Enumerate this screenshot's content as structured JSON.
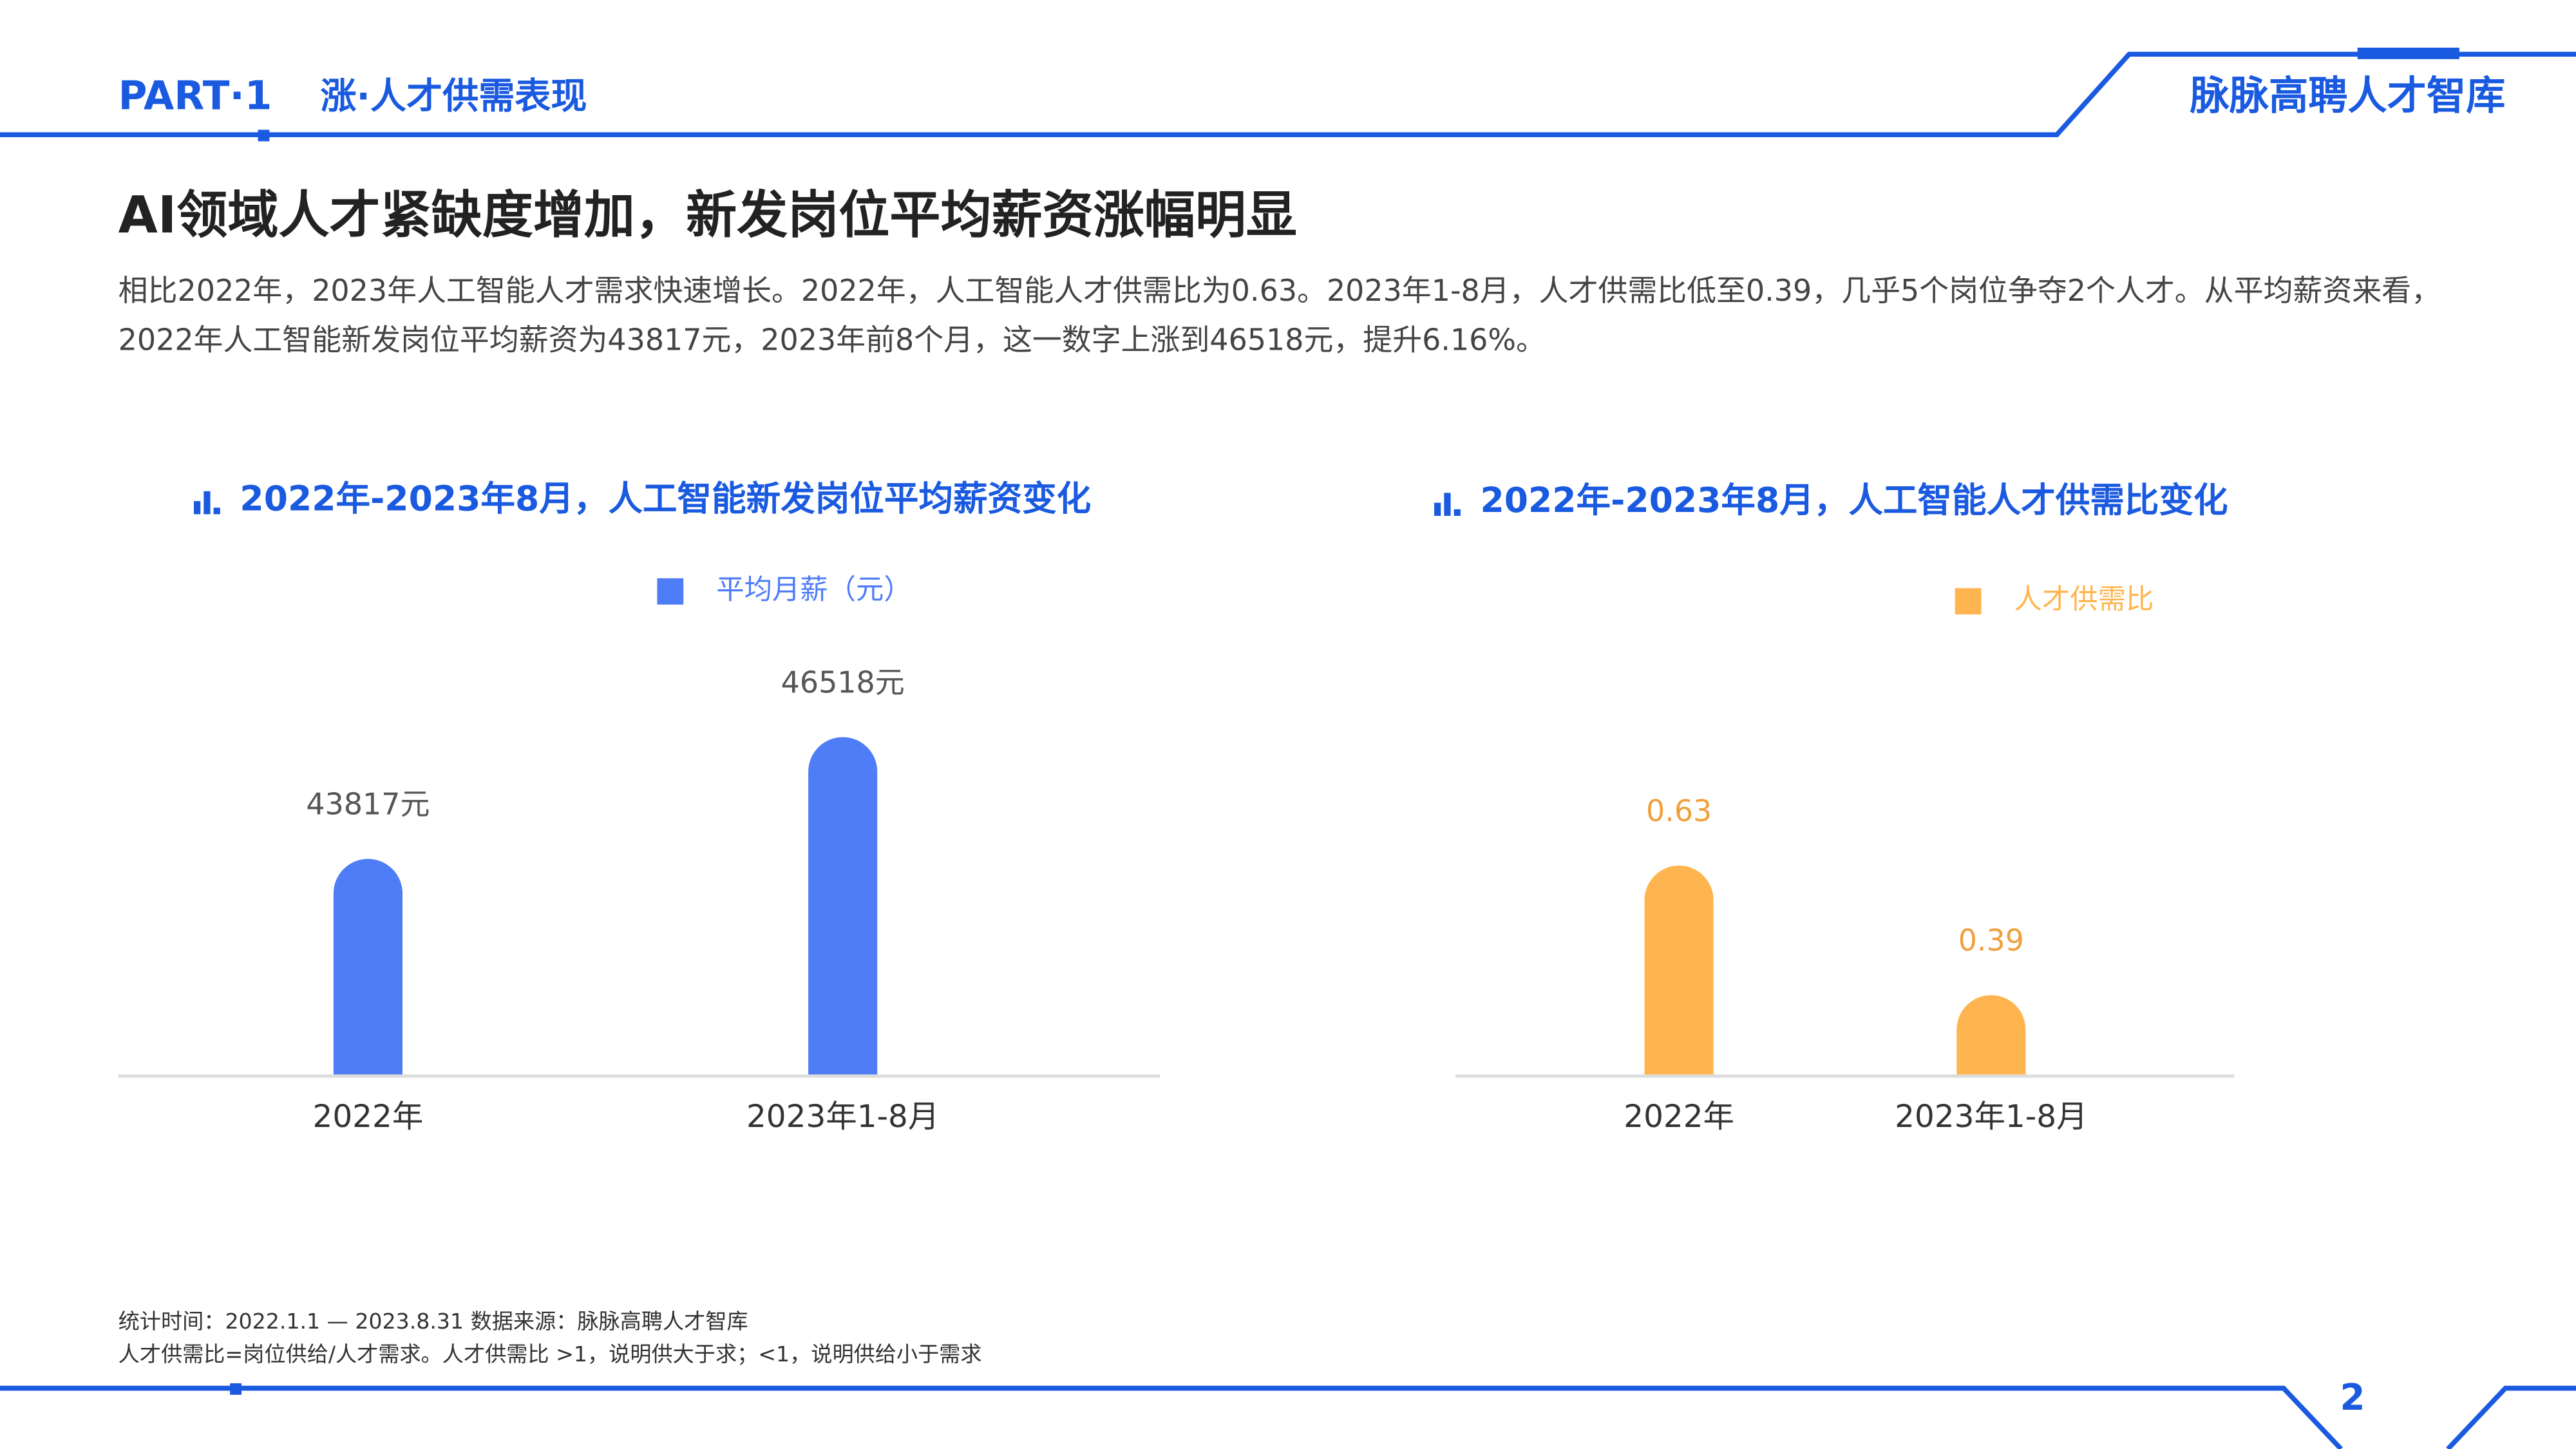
{
  "header": {
    "part": "PART·1",
    "section": "涨·人才供需表现",
    "brand": "脉脉高聘人才智库"
  },
  "title": "AI领域人才紧缺度增加，新发岗位平均薪资涨幅明显",
  "paragraph": "相比2022年，2023年人工智能人才需求快速增长。2022年，人工智能人才供需比为0.63。2023年1-8月，人才供需比低至0.39，几乎5个岗位争夺2个人才。从平均薪资来看，2022年人工智能新发岗位平均薪资为43817元，2023年前8个月，这一数字上涨到46518元，提升6.16%。",
  "chart_data": [
    {
      "type": "bar",
      "title": "2022年-2023年8月，人工智能新发岗位平均薪资变化",
      "categories": [
        "2022年",
        "2023年1-8月"
      ],
      "series": [
        {
          "name": "平均月薪（元）",
          "color": "#4f7cf7",
          "values": [
            43817,
            46518
          ],
          "value_labels": [
            "43817元",
            "46518元"
          ]
        }
      ],
      "ylim": [
        39000,
        48000
      ]
    },
    {
      "type": "bar",
      "title": "2022年-2023年8月，人工智能人才供需比变化",
      "categories": [
        "2022年",
        "2023年1-8月"
      ],
      "series": [
        {
          "name": "人才供需比",
          "color": "#ffb54f",
          "values": [
            0.63,
            0.39
          ]
        }
      ],
      "ylim": [
        0.24,
        0.8
      ]
    }
  ],
  "footnotes": [
    "统计时间：2022.1.1 — 2023.8.31   数据来源：脉脉高聘人才智库",
    "人才供需比=岗位供给/人才需求。人才供需比 >1，说明供大于求；<1，说明供给小于需求"
  ],
  "page_number": "2"
}
